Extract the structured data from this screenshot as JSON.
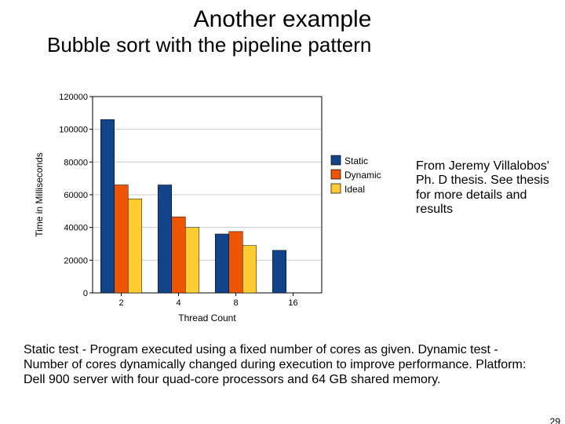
{
  "title": "Another example",
  "subtitle": "Bubble sort with the pipeline pattern",
  "side_note": "From Jeremy Villalobos' Ph. D thesis. See thesis for more details and results",
  "bottom_text": "Static test - Program executed using a fixed number of cores as given. Dynamic test  - Number of cores dynamically changed during execution to improve performance. Platform: Dell 900 server with four quad-core processors and 64 GB shared memory.",
  "page_number": "29",
  "chart": {
    "type": "bar",
    "categories": [
      "2",
      "4",
      "8",
      "16"
    ],
    "xlabel": "Thread Count",
    "ylabel": "Time in Milliseconds",
    "label_fontsize": 12,
    "ylim": [
      0,
      120000
    ],
    "ytick_step": 20000,
    "yticks": [
      "0",
      "20000",
      "40000",
      "60000",
      "80000",
      "100000",
      "120000"
    ],
    "series": [
      {
        "name": "Static",
        "color": "#114488",
        "values": [
          106000,
          66000,
          36000,
          26000
        ]
      },
      {
        "name": "Dynamic",
        "color": "#ee5500",
        "values": [
          66000,
          46500,
          37500,
          null
        ]
      },
      {
        "name": "Ideal",
        "color": "#ffcc33",
        "values": [
          57500,
          40000,
          29000,
          null
        ]
      }
    ],
    "background_color": "#ffffff",
    "plot_border_color": "#000000",
    "grid_color": "#cccccc",
    "bar_width": 0.24,
    "group_gap": 0.28,
    "legend": {
      "position": "right",
      "swatch_border": "#000000",
      "text_color": "#000000",
      "fontsize": 12
    },
    "tick_fontsize": 11,
    "axis_color": "#000000"
  }
}
